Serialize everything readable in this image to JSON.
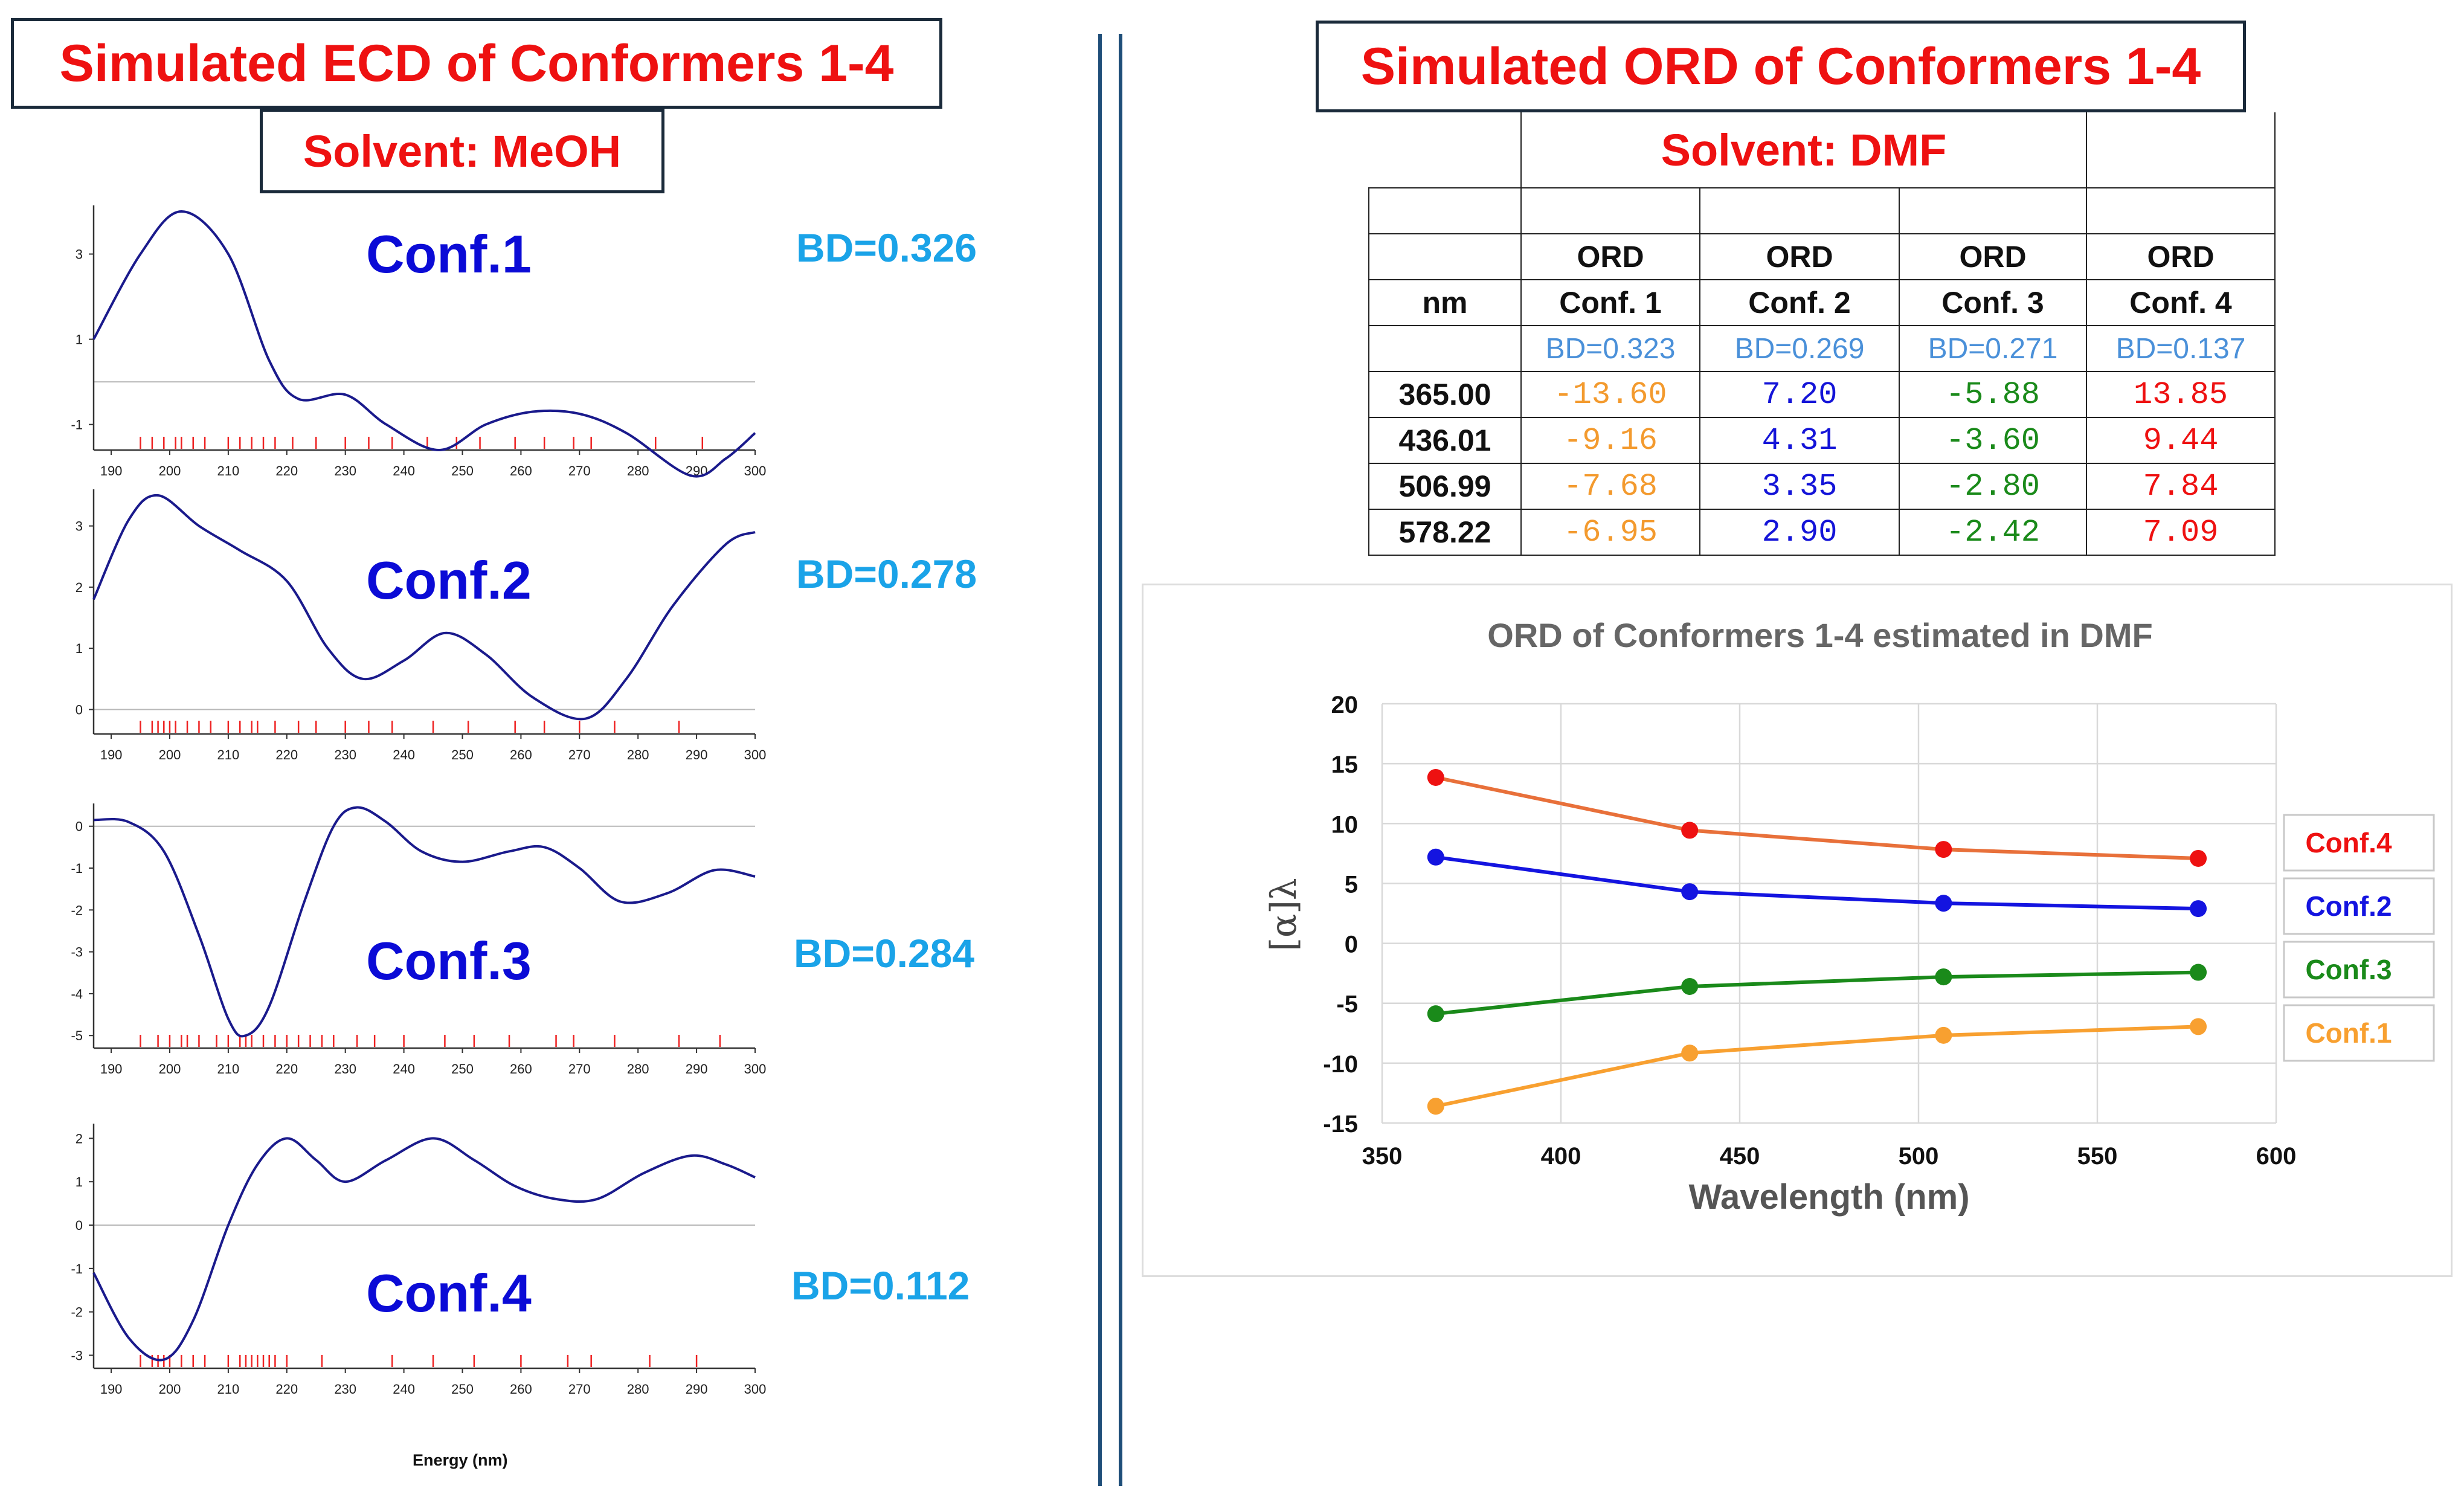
{
  "ecd": {
    "title": "Simulated ECD of Conformers 1-4",
    "solvent": "Solvent: MeOH",
    "xlabel": "Energy (nm)"
  },
  "ord": {
    "title": "Simulated ORD of Conformers 1-4",
    "solvent": "Solvent: DMF",
    "table": {
      "header_top": [
        "",
        "ORD",
        "ORD",
        "ORD",
        "ORD"
      ],
      "header_mid": [
        "nm",
        "Conf. 1",
        "Conf. 2",
        "Conf. 3",
        "Conf. 4"
      ],
      "bd_row": [
        "",
        "BD=0.323",
        "BD=0.269",
        "BD=0.271",
        "BD=0.137"
      ],
      "rows": [
        [
          "365.00",
          "-13.60",
          "7.20",
          "-5.88",
          "13.85"
        ],
        [
          "436.01",
          "-9.16",
          "4.31",
          "-3.60",
          "9.44"
        ],
        [
          "506.99",
          "-7.68",
          "3.35",
          "-2.80",
          "7.84"
        ],
        [
          "578.22",
          "-6.95",
          "2.90",
          "-2.42",
          "7.09"
        ]
      ],
      "value_colors": [
        "#f39a2e",
        "#1414d8",
        "#1a8a1a",
        "#ee1111"
      ]
    }
  },
  "chart_data": [
    {
      "type": "line",
      "label": "Conf.1",
      "bd": "BD=0.326",
      "xlim": [
        187,
        300
      ],
      "xticks": [
        190,
        200,
        210,
        220,
        230,
        240,
        250,
        260,
        270,
        280,
        290,
        300
      ],
      "ylim": [
        -1.6,
        4.0
      ],
      "yticks": [
        3,
        1,
        -1
      ],
      "baseline": 0,
      "curve": [
        [
          187,
          1.0
        ],
        [
          195,
          3.0
        ],
        [
          202,
          4.0
        ],
        [
          210,
          3.0
        ],
        [
          217,
          0.5
        ],
        [
          222,
          -0.4
        ],
        [
          230,
          -0.3
        ],
        [
          237,
          -1.0
        ],
        [
          246,
          -1.6
        ],
        [
          254,
          -1.0
        ],
        [
          262,
          -0.7
        ],
        [
          270,
          -0.75
        ],
        [
          278,
          -1.2
        ],
        [
          289,
          -2.2
        ],
        [
          295,
          -1.8
        ],
        [
          300,
          -1.2
        ]
      ],
      "sticks": [
        195,
        197,
        199,
        201,
        202,
        204,
        206,
        210,
        212,
        214,
        216,
        218,
        221,
        225,
        230,
        234,
        238,
        244,
        249,
        253,
        259,
        264,
        269,
        272,
        283,
        291
      ]
    },
    {
      "type": "line",
      "label": "Conf.2",
      "bd": "BD=0.278",
      "xlim": [
        187,
        300
      ],
      "xticks": [
        190,
        200,
        210,
        220,
        230,
        240,
        250,
        260,
        270,
        280,
        290,
        300
      ],
      "ylim": [
        -0.4,
        3.5
      ],
      "yticks": [
        3,
        2,
        1,
        0
      ],
      "baseline": 0,
      "curve": [
        [
          187,
          1.8
        ],
        [
          193,
          3.1
        ],
        [
          198,
          3.5
        ],
        [
          205,
          3.0
        ],
        [
          212,
          2.6
        ],
        [
          220,
          2.1
        ],
        [
          227,
          1.0
        ],
        [
          233,
          0.5
        ],
        [
          240,
          0.8
        ],
        [
          247,
          1.25
        ],
        [
          254,
          0.9
        ],
        [
          262,
          0.2
        ],
        [
          271,
          -0.15
        ],
        [
          278,
          0.5
        ],
        [
          286,
          1.7
        ],
        [
          295,
          2.7
        ],
        [
          300,
          2.9
        ]
      ],
      "sticks": [
        195,
        197,
        198,
        199,
        200,
        201,
        203,
        205,
        207,
        210,
        212,
        214,
        215,
        218,
        222,
        225,
        230,
        234,
        238,
        245,
        251,
        259,
        264,
        270,
        276,
        287
      ]
    },
    {
      "type": "line",
      "label": "Conf.3",
      "bd": "BD=0.284",
      "xlim": [
        187,
        300
      ],
      "xticks": [
        190,
        200,
        210,
        220,
        230,
        240,
        250,
        260,
        270,
        280,
        290,
        300
      ],
      "ylim": [
        -5.3,
        0.4
      ],
      "yticks": [
        0,
        -1,
        -2,
        -3,
        -4,
        -5
      ],
      "baseline": 0,
      "curve": [
        [
          187,
          0.15
        ],
        [
          193,
          0.1
        ],
        [
          199,
          -0.6
        ],
        [
          205,
          -2.6
        ],
        [
          210,
          -4.6
        ],
        [
          213,
          -5.0
        ],
        [
          217,
          -4.3
        ],
        [
          223,
          -1.8
        ],
        [
          228,
          0.0
        ],
        [
          232,
          0.45
        ],
        [
          237,
          0.1
        ],
        [
          243,
          -0.6
        ],
        [
          250,
          -0.85
        ],
        [
          258,
          -0.6
        ],
        [
          264,
          -0.5
        ],
        [
          270,
          -1.0
        ],
        [
          277,
          -1.8
        ],
        [
          285,
          -1.6
        ],
        [
          293,
          -1.05
        ],
        [
          300,
          -1.2
        ]
      ],
      "sticks": [
        195,
        198,
        200,
        202,
        203,
        205,
        208,
        210,
        212,
        213,
        214,
        216,
        218,
        220,
        222,
        224,
        226,
        228,
        232,
        235,
        240,
        247,
        252,
        258,
        266,
        269,
        276,
        287,
        294
      ]
    },
    {
      "type": "line",
      "label": "Conf.4",
      "bd": "BD=0.112",
      "xlim": [
        187,
        300
      ],
      "xticks": [
        190,
        200,
        210,
        220,
        230,
        240,
        250,
        260,
        270,
        280,
        290,
        300
      ],
      "ylim": [
        -3.3,
        2.2
      ],
      "yticks": [
        2,
        1,
        0,
        -1,
        -2,
        -3
      ],
      "baseline": 0,
      "curve": [
        [
          187,
          -1.1
        ],
        [
          193,
          -2.6
        ],
        [
          199,
          -3.1
        ],
        [
          204,
          -2.2
        ],
        [
          210,
          0.0
        ],
        [
          215,
          1.4
        ],
        [
          220,
          2.0
        ],
        [
          225,
          1.5
        ],
        [
          230,
          1.0
        ],
        [
          237,
          1.5
        ],
        [
          245,
          2.0
        ],
        [
          252,
          1.5
        ],
        [
          259,
          0.9
        ],
        [
          266,
          0.6
        ],
        [
          273,
          0.6
        ],
        [
          281,
          1.2
        ],
        [
          289,
          1.6
        ],
        [
          295,
          1.4
        ],
        [
          300,
          1.1
        ]
      ],
      "sticks": [
        195,
        197,
        198,
        199,
        200,
        202,
        204,
        206,
        210,
        212,
        213,
        214,
        215,
        216,
        217,
        218,
        220,
        226,
        238,
        245,
        252,
        260,
        268,
        272,
        282,
        290
      ]
    },
    {
      "type": "line",
      "title": "ORD of Conformers 1-4 estimated in DMF",
      "xlabel": "Wavelength (nm)",
      "ylabel": "[α]λ",
      "xlim": [
        350,
        600
      ],
      "ylim": [
        -15,
        20
      ],
      "xticks": [
        350,
        400,
        450,
        500,
        550,
        600
      ],
      "yticks": [
        20,
        15,
        10,
        5,
        0,
        -5,
        -10,
        -15
      ],
      "x": [
        365.0,
        436.01,
        506.99,
        578.22
      ],
      "legend": "right",
      "series": [
        {
          "name": "Conf.4",
          "values": [
            13.85,
            9.44,
            7.84,
            7.09
          ],
          "line_color": "#e8703a",
          "marker_color": "#ee1111"
        },
        {
          "name": "Conf.2",
          "values": [
            7.2,
            4.31,
            3.35,
            2.9
          ],
          "line_color": "#1414e0",
          "marker_color": "#1414e0"
        },
        {
          "name": "Conf.3",
          "values": [
            -5.88,
            -3.6,
            -2.8,
            -2.42
          ],
          "line_color": "#1a8a1a",
          "marker_color": "#1a8a1a"
        },
        {
          "name": "Conf.1",
          "values": [
            -13.6,
            -9.16,
            -7.68,
            -6.95
          ],
          "line_color": "#f8a030",
          "marker_color": "#f8a030"
        }
      ]
    }
  ]
}
